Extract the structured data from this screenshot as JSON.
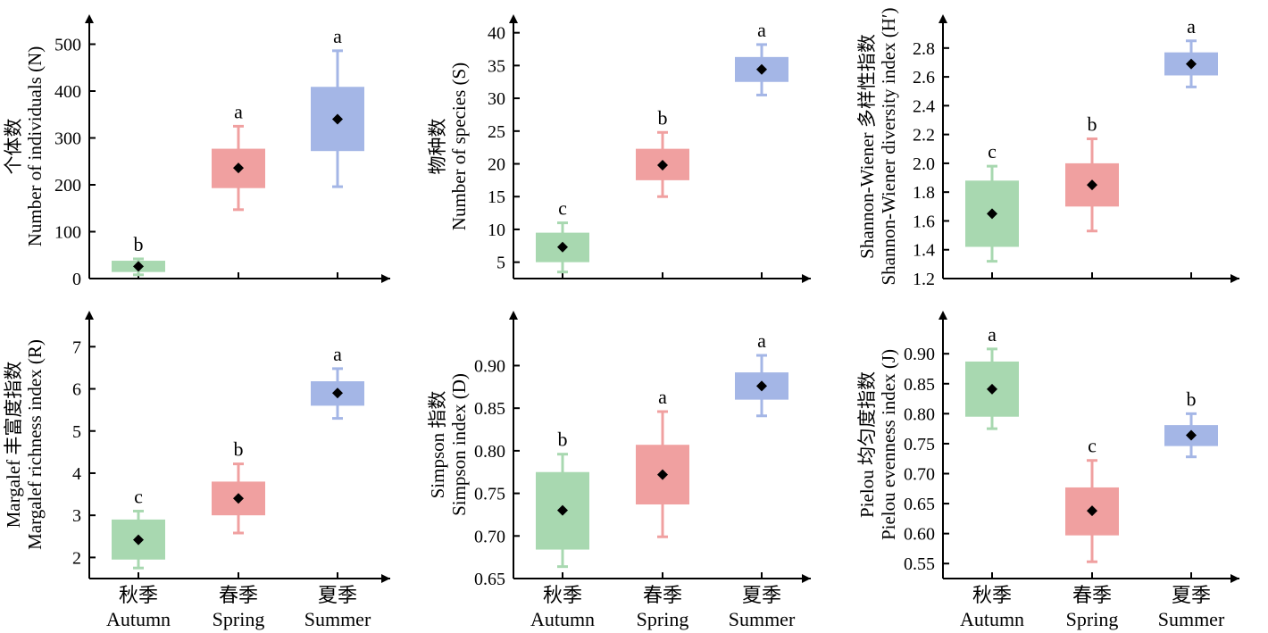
{
  "categories": [
    {
      "zh": "秋季",
      "en": "Autumn"
    },
    {
      "zh": "春季",
      "en": "Spring"
    },
    {
      "zh": "夏季",
      "en": "Summer"
    }
  ],
  "colors": {
    "Autumn": {
      "fill": "#a8d8b0",
      "whisker": "#a8d8b0"
    },
    "Spring": {
      "fill": "#f0a0a0",
      "whisker": "#f0a0a0"
    },
    "Summer": {
      "fill": "#a4b6e6",
      "whisker": "#a4b6e6"
    },
    "mean_marker": "#000000",
    "axis": "#000000"
  },
  "chart_data": [
    {
      "type": "box",
      "ylabel_zh": "个体数",
      "ylabel_en": "Number of individuals (N)",
      "ylim": [
        0,
        560
      ],
      "yticks": [
        0,
        100,
        200,
        300,
        400,
        500
      ],
      "tick_labels": [
        "0",
        "100",
        "200",
        "300",
        "400",
        "500"
      ],
      "boxes": [
        {
          "category": "Autumn",
          "min": 8,
          "q1": 14,
          "q3": 38,
          "max": 42,
          "mean": 26,
          "letter": "b"
        },
        {
          "category": "Spring",
          "min": 147,
          "q1": 193,
          "q3": 277,
          "max": 325,
          "mean": 236,
          "letter": "a"
        },
        {
          "category": "Summer",
          "min": 196,
          "q1": 272,
          "q3": 409,
          "max": 486,
          "mean": 340,
          "letter": "a"
        }
      ]
    },
    {
      "type": "box",
      "ylabel_zh": "物种数",
      "ylabel_en": "Number of species (S)",
      "ylim": [
        2.5,
        42
      ],
      "yticks": [
        5,
        10,
        15,
        20,
        25,
        30,
        35,
        40
      ],
      "tick_labels": [
        "5",
        "10",
        "15",
        "20",
        "25",
        "30",
        "35",
        "40"
      ],
      "boxes": [
        {
          "category": "Autumn",
          "min": 3.5,
          "q1": 5,
          "q3": 9.5,
          "max": 11,
          "mean": 7.3,
          "letter": "c"
        },
        {
          "category": "Spring",
          "min": 15,
          "q1": 17.5,
          "q3": 22.3,
          "max": 24.8,
          "mean": 19.8,
          "letter": "b"
        },
        {
          "category": "Summer",
          "min": 30.5,
          "q1": 32.5,
          "q3": 36.3,
          "max": 38.2,
          "mean": 34.4,
          "letter": "a"
        }
      ]
    },
    {
      "type": "box",
      "ylabel_zh": "Shannon-Wiener 多样性指数",
      "ylabel_en": "Shannon-Wiener diversity index (H′)",
      "ylim": [
        1.2,
        2.96
      ],
      "yticks": [
        1.2,
        1.4,
        1.6,
        1.8,
        2.0,
        2.2,
        2.4,
        2.6,
        2.8
      ],
      "tick_labels": [
        "1.2",
        "1.4",
        "1.6",
        "1.8",
        "2.0",
        "2.2",
        "2.4",
        "2.6",
        "2.8"
      ],
      "boxes": [
        {
          "category": "Autumn",
          "min": 1.32,
          "q1": 1.42,
          "q3": 1.88,
          "max": 1.98,
          "mean": 1.65,
          "letter": "c"
        },
        {
          "category": "Spring",
          "min": 1.53,
          "q1": 1.7,
          "q3": 2.0,
          "max": 2.17,
          "mean": 1.85,
          "letter": "b"
        },
        {
          "category": "Summer",
          "min": 2.53,
          "q1": 2.61,
          "q3": 2.77,
          "max": 2.85,
          "mean": 2.69,
          "letter": "a"
        }
      ]
    },
    {
      "type": "box",
      "ylabel_zh": "Margalef 丰富度指数",
      "ylabel_en": "Margalef  richness index (R)",
      "ylim": [
        1.5,
        7.6
      ],
      "yticks": [
        2,
        3,
        4,
        5,
        6,
        7
      ],
      "tick_labels": [
        "2",
        "3",
        "4",
        "5",
        "6",
        "7"
      ],
      "boxes": [
        {
          "category": "Autumn",
          "min": 1.75,
          "q1": 1.95,
          "q3": 2.9,
          "max": 3.1,
          "mean": 2.42,
          "letter": "c"
        },
        {
          "category": "Spring",
          "min": 2.58,
          "q1": 3.0,
          "q3": 3.8,
          "max": 4.22,
          "mean": 3.4,
          "letter": "b"
        },
        {
          "category": "Summer",
          "min": 5.3,
          "q1": 5.6,
          "q3": 6.18,
          "max": 6.48,
          "mean": 5.9,
          "letter": "a"
        }
      ]
    },
    {
      "type": "box",
      "ylabel_zh": "Simpson 指数",
      "ylabel_en": "Simpson index (D)",
      "ylim": [
        0.65,
        0.955
      ],
      "yticks": [
        0.65,
        0.7,
        0.75,
        0.8,
        0.85,
        0.9
      ],
      "tick_labels": [
        "0.65",
        "0.70",
        "0.75",
        "0.80",
        "0.85",
        "0.90"
      ],
      "boxes": [
        {
          "category": "Autumn",
          "min": 0.664,
          "q1": 0.684,
          "q3": 0.775,
          "max": 0.796,
          "mean": 0.73,
          "letter": "b"
        },
        {
          "category": "Spring",
          "min": 0.699,
          "q1": 0.737,
          "q3": 0.807,
          "max": 0.846,
          "mean": 0.772,
          "letter": "a"
        },
        {
          "category": "Summer",
          "min": 0.841,
          "q1": 0.86,
          "q3": 0.892,
          "max": 0.912,
          "mean": 0.876,
          "letter": "a"
        }
      ]
    },
    {
      "type": "box",
      "ylabel_zh": "Pielou 均匀度指数",
      "ylabel_en": "Pielou evenness index (J)",
      "ylim": [
        0.525,
        0.945
      ],
      "yticks": [
        0.55,
        0.6,
        0.65,
        0.7,
        0.75,
        0.8,
        0.85,
        0.9
      ],
      "tick_labels": [
        "0.55",
        "0.60",
        "0.65",
        "0.70",
        "0.75",
        "0.80",
        "0.85",
        "0.90"
      ],
      "boxes": [
        {
          "category": "Autumn",
          "min": 0.775,
          "q1": 0.795,
          "q3": 0.887,
          "max": 0.908,
          "mean": 0.841,
          "letter": "a"
        },
        {
          "category": "Spring",
          "min": 0.553,
          "q1": 0.597,
          "q3": 0.677,
          "max": 0.722,
          "mean": 0.638,
          "letter": "c"
        },
        {
          "category": "Summer",
          "min": 0.728,
          "q1": 0.746,
          "q3": 0.781,
          "max": 0.8,
          "mean": 0.764,
          "letter": "b"
        }
      ]
    }
  ]
}
